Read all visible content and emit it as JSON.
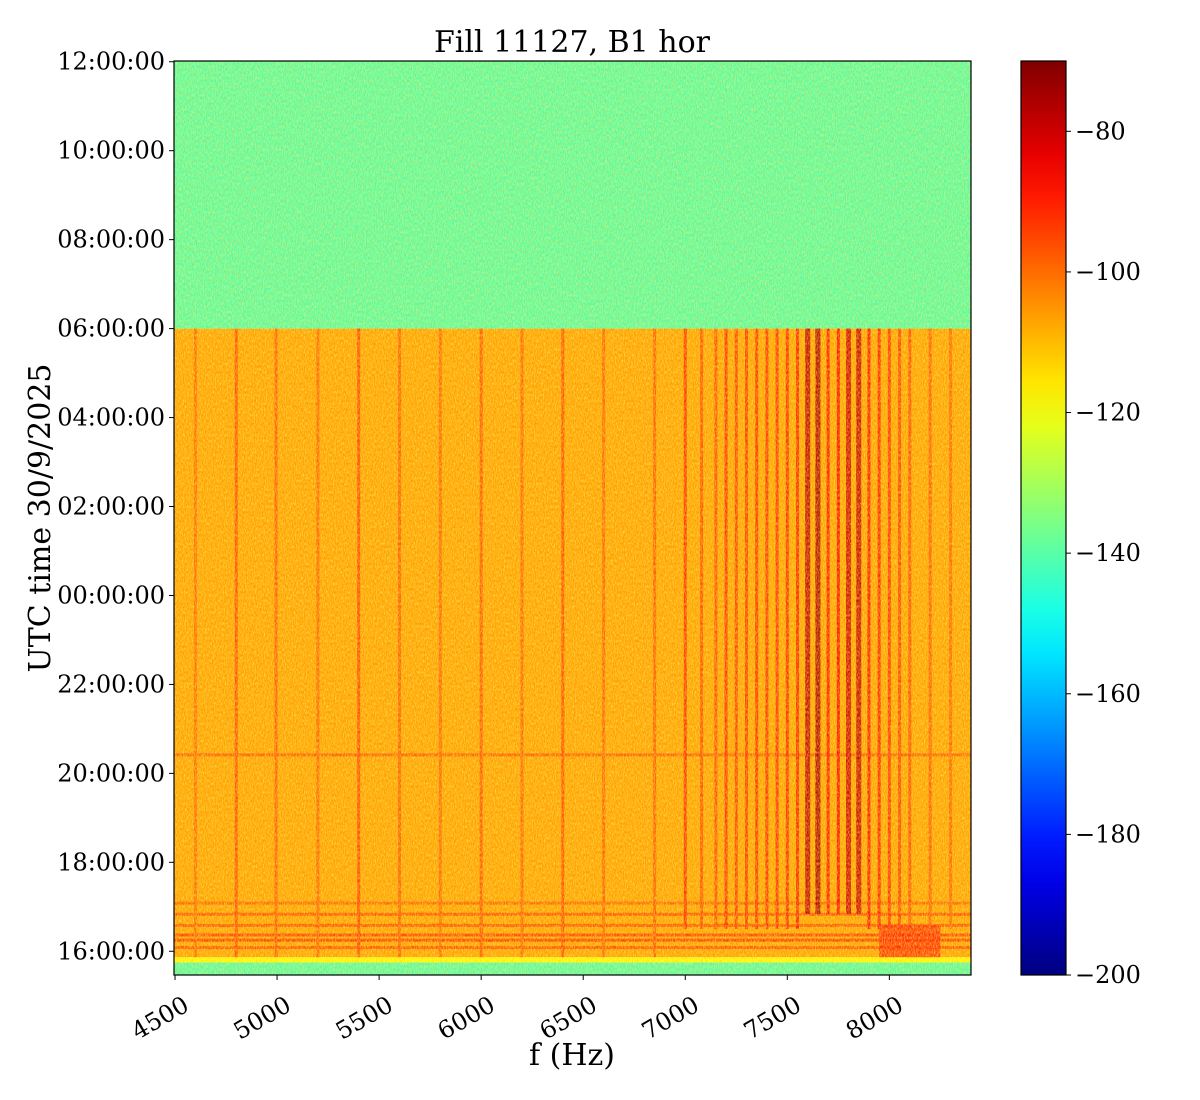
{
  "chart_data": {
    "type": "heatmap",
    "title": "Fill 11127, B1 hor",
    "xlabel": "f (Hz)",
    "ylabel": "UTC time 30/9/2025",
    "xlim": [
      4495,
      8400
    ],
    "ylim": [
      "2025-09-30T15:28:00",
      "2025-10-01T12:01:00"
    ],
    "xticks": [
      4500,
      5000,
      5500,
      6000,
      6500,
      7000,
      7500,
      8000
    ],
    "xtick_labels": [
      "4500",
      "5000",
      "5500",
      "6000",
      "6500",
      "7000",
      "7500",
      "8000"
    ],
    "yticks": [
      "2025-10-01T12:00:00",
      "2025-10-01T10:00:00",
      "2025-10-01T08:00:00",
      "2025-10-01T06:00:00",
      "2025-10-01T04:00:00",
      "2025-10-01T02:00:00",
      "2025-10-01T00:00:00",
      "2025-09-30T22:00:00",
      "2025-09-30T20:00:00",
      "2025-09-30T18:00:00",
      "2025-09-30T16:00:00"
    ],
    "ytick_labels": [
      "12:00:00",
      "10:00:00",
      "08:00:00",
      "06:00:00",
      "04:00:00",
      "02:00:00",
      "00:00:00",
      "22:00:00",
      "20:00:00",
      "18:00:00",
      "16:00:00"
    ],
    "colorbar": {
      "colormap": "jet",
      "range": [
        -200,
        -70
      ],
      "ticks": [
        -80,
        -100,
        -120,
        -140,
        -160,
        -180,
        -200
      ],
      "tick_labels": [
        "−80",
        "−100",
        "−120",
        "−140",
        "−160",
        "−180",
        "−200"
      ]
    },
    "background_bands": [
      {
        "from": "2025-09-30T15:28:00",
        "to": "2025-09-30T15:45:00",
        "level": -140
      },
      {
        "from": "2025-09-30T15:45:00",
        "to": "2025-09-30T15:52:00",
        "level": -118
      },
      {
        "from": "2025-09-30T15:52:00",
        "to": "2025-10-01T06:00:00",
        "level": -107
      },
      {
        "from": "2025-10-01T06:00:00",
        "to": "2025-10-01T12:01:00",
        "level": -140
      }
    ],
    "horizontal_features": [
      {
        "time": "2025-09-30T16:05:00",
        "level": -95
      },
      {
        "time": "2025-09-30T16:15:00",
        "level": -92
      },
      {
        "time": "2025-09-30T16:22:00",
        "level": -93
      },
      {
        "time": "2025-09-30T16:35:00",
        "level": -95
      },
      {
        "time": "2025-09-30T16:50:00",
        "level": -95
      },
      {
        "time": "2025-09-30T17:05:00",
        "level": -98
      },
      {
        "time": "2025-09-30T20:25:00",
        "level": -97
      }
    ],
    "spectral_lines": [
      {
        "f": 4600,
        "from": "2025-09-30T15:52:00",
        "level": -100
      },
      {
        "f": 4800,
        "from": "2025-09-30T15:52:00",
        "level": -96
      },
      {
        "f": 4995,
        "from": "2025-09-30T15:52:00",
        "level": -98
      },
      {
        "f": 5200,
        "from": "2025-09-30T15:52:00",
        "level": -99
      },
      {
        "f": 5400,
        "from": "2025-09-30T15:52:00",
        "level": -95
      },
      {
        "f": 5600,
        "from": "2025-09-30T15:52:00",
        "level": -98
      },
      {
        "f": 5800,
        "from": "2025-09-30T15:52:00",
        "level": -99
      },
      {
        "f": 6000,
        "from": "2025-09-30T15:52:00",
        "level": -97
      },
      {
        "f": 6200,
        "from": "2025-09-30T15:52:00",
        "level": -99
      },
      {
        "f": 6400,
        "from": "2025-09-30T15:52:00",
        "level": -96
      },
      {
        "f": 6600,
        "from": "2025-09-30T15:52:00",
        "level": -99
      },
      {
        "f": 6850,
        "from": "2025-09-30T15:52:00",
        "level": -98
      },
      {
        "f": 7000,
        "from": "2025-09-30T16:30:00",
        "level": -92
      },
      {
        "f": 7080,
        "from": "2025-09-30T16:30:00",
        "level": -96
      },
      {
        "f": 7150,
        "from": "2025-09-30T16:30:00",
        "level": -96
      },
      {
        "f": 7200,
        "from": "2025-09-30T16:30:00",
        "level": -92
      },
      {
        "f": 7250,
        "from": "2025-09-30T16:30:00",
        "level": -94
      },
      {
        "f": 7300,
        "from": "2025-09-30T16:30:00",
        "level": -93
      },
      {
        "f": 7350,
        "from": "2025-09-30T16:30:00",
        "level": -92
      },
      {
        "f": 7400,
        "from": "2025-09-30T16:30:00",
        "level": -92
      },
      {
        "f": 7450,
        "from": "2025-09-30T16:30:00",
        "level": -92
      },
      {
        "f": 7500,
        "from": "2025-09-30T16:30:00",
        "level": -91
      },
      {
        "f": 7550,
        "from": "2025-09-30T16:30:00",
        "level": -90
      },
      {
        "f": 7600,
        "from": "2025-09-30T16:50:00",
        "level": -78
      },
      {
        "f": 7650,
        "from": "2025-09-30T16:50:00",
        "level": -76
      },
      {
        "f": 7700,
        "from": "2025-09-30T16:50:00",
        "level": -88
      },
      {
        "f": 7750,
        "from": "2025-09-30T16:50:00",
        "level": -86
      },
      {
        "f": 7800,
        "from": "2025-09-30T16:50:00",
        "level": -80
      },
      {
        "f": 7850,
        "from": "2025-09-30T16:50:00",
        "level": -79
      },
      {
        "f": 7900,
        "from": "2025-09-30T16:30:00",
        "level": -88
      },
      {
        "f": 7950,
        "from": "2025-09-30T16:30:00",
        "level": -90
      },
      {
        "f": 8000,
        "from": "2025-09-30T16:30:00",
        "level": -92
      },
      {
        "f": 8050,
        "from": "2025-09-30T16:30:00",
        "level": -94
      },
      {
        "f": 8100,
        "from": "2025-09-30T16:30:00",
        "level": -96
      },
      {
        "f": 8200,
        "from": "2025-09-30T16:30:00",
        "level": -98
      },
      {
        "f": 8300,
        "from": "2025-09-30T16:30:00",
        "level": -99
      }
    ],
    "line_end": "2025-10-01T06:00:00",
    "blobs": [
      {
        "f_from": 7950,
        "f_to": 8250,
        "from": "2025-09-30T15:52:00",
        "to": "2025-09-30T16:35:00",
        "level": -90
      }
    ]
  }
}
